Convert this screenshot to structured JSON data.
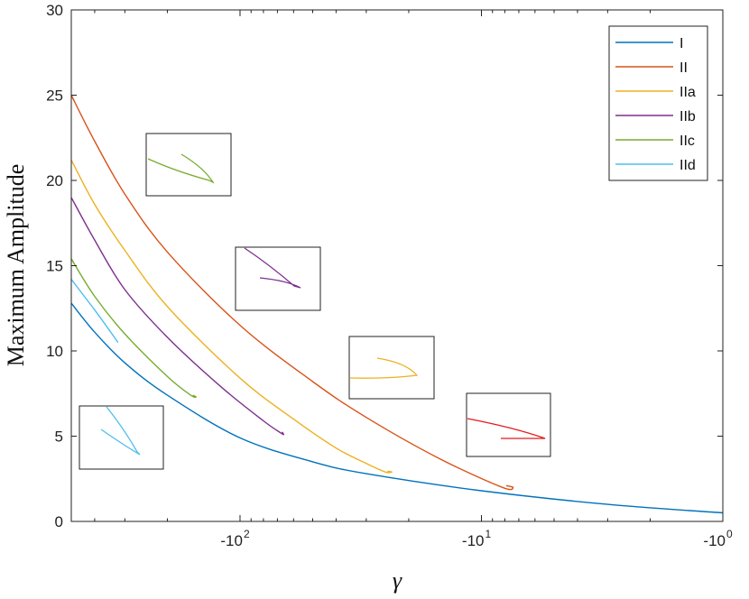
{
  "chart_data": {
    "type": "line",
    "xlabel": "γ",
    "ylabel": "Maximum Amplitude",
    "xscale": "log (negative axis)",
    "xlim": [
      -500,
      -1
    ],
    "ylim": [
      0,
      30
    ],
    "grid": false,
    "legend_placement": "top-right",
    "x_ticks": [
      {
        "base": "-10",
        "exp": "2",
        "value": -100
      },
      {
        "base": "-10",
        "exp": "1",
        "value": -10
      },
      {
        "base": "-10",
        "exp": "0",
        "value": -1
      }
    ],
    "y_ticks": [
      "0",
      "5",
      "10",
      "15",
      "20",
      "25",
      "30"
    ],
    "series": [
      {
        "name": "I",
        "color": "#0072BD",
        "points": [
          [
            -500,
            12.8
          ],
          [
            -400,
            11.1
          ],
          [
            -300,
            9.3
          ],
          [
            -200,
            7.4
          ],
          [
            -100,
            4.9
          ],
          [
            -50,
            3.5
          ],
          [
            -30,
            2.8
          ],
          [
            -10,
            1.8
          ],
          [
            -3,
            1.0
          ],
          [
            -1,
            0.5
          ]
        ]
      },
      {
        "name": "II",
        "color": "#D95319",
        "points": [
          [
            -500,
            25.0
          ],
          [
            -400,
            22.3
          ],
          [
            -300,
            19.2
          ],
          [
            -200,
            15.8
          ],
          [
            -100,
            11.5
          ],
          [
            -50,
            8.2
          ],
          [
            -30,
            6.1
          ],
          [
            -15,
            3.7
          ],
          [
            -8.2,
            2.0
          ],
          [
            -7.4,
            2.0
          ],
          [
            -7.9,
            2.1
          ]
        ]
      },
      {
        "name": "IIa",
        "color": "#EDB120",
        "points": [
          [
            -500,
            21.2
          ],
          [
            -400,
            18.6
          ],
          [
            -300,
            15.9
          ],
          [
            -200,
            12.6
          ],
          [
            -100,
            8.4
          ],
          [
            -60,
            6.0
          ],
          [
            -40,
            4.3
          ],
          [
            -30,
            3.4
          ],
          [
            -25,
            2.9
          ],
          [
            -23.5,
            2.9
          ],
          [
            -24.5,
            2.95
          ]
        ]
      },
      {
        "name": "IIb",
        "color": "#7E2F8E",
        "points": [
          [
            -500,
            19.0
          ],
          [
            -400,
            16.5
          ],
          [
            -300,
            13.6
          ],
          [
            -200,
            10.8
          ],
          [
            -120,
            7.9
          ],
          [
            -80,
            5.9
          ],
          [
            -68,
            5.2
          ],
          [
            -66,
            5.1
          ],
          [
            -67,
            5.25
          ]
        ]
      },
      {
        "name": "IIc",
        "color": "#77AC30",
        "points": [
          [
            -500,
            15.4
          ],
          [
            -400,
            13.2
          ],
          [
            -300,
            11.0
          ],
          [
            -200,
            8.5
          ],
          [
            -160,
            7.4
          ],
          [
            -152,
            7.3
          ],
          [
            -157,
            7.4
          ]
        ]
      },
      {
        "name": "IId",
        "color": "#4DBEEE",
        "points": [
          [
            -500,
            14.2
          ],
          [
            -400,
            12.4
          ],
          [
            -320,
            10.5
          ]
        ]
      }
    ]
  }
}
